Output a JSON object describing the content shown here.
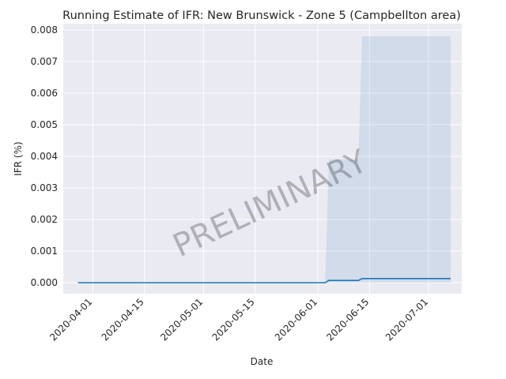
{
  "chart_data": {
    "type": "line",
    "title": "Running Estimate of IFR: New Brunswick - Zone 5 (Campbellton area)",
    "xlabel": "Date",
    "ylabel": "IFR (%)",
    "watermark": "PRELIMINARY",
    "grid": true,
    "x_range": [
      "2020-03-24",
      "2020-07-10"
    ],
    "ylim": [
      -0.00035,
      0.0082
    ],
    "x_ticks": [
      "2020-04-01",
      "2020-04-15",
      "2020-05-01",
      "2020-05-15",
      "2020-06-01",
      "2020-06-15",
      "2020-07-01"
    ],
    "y_ticks": [
      0.0,
      0.001,
      0.002,
      0.003,
      0.004,
      0.005,
      0.006,
      0.007,
      0.008
    ],
    "y_tick_labels": [
      "0.000",
      "0.001",
      "0.002",
      "0.003",
      "0.004",
      "0.005",
      "0.006",
      "0.007",
      "0.008"
    ],
    "series": [
      {
        "color": "#1f77b4",
        "points": [
          [
            "2020-03-28",
            0.0
          ],
          [
            "2020-06-03",
            0.0
          ],
          [
            "2020-06-04",
            7e-05
          ],
          [
            "2020-06-12",
            7e-05
          ],
          [
            "2020-06-13",
            0.00013
          ],
          [
            "2020-07-07",
            0.00013
          ]
        ]
      }
    ],
    "confidence_band": {
      "color": "#1f77b4",
      "opacity": 0.12,
      "upper": [
        [
          "2020-06-03",
          0.0
        ],
        [
          "2020-06-04",
          0.0039
        ],
        [
          "2020-06-12",
          0.0039
        ],
        [
          "2020-06-13",
          0.0078
        ],
        [
          "2020-07-07",
          0.0078
        ]
      ],
      "lower": [
        [
          "2020-06-03",
          0.0
        ],
        [
          "2020-07-07",
          0.0
        ]
      ]
    }
  }
}
